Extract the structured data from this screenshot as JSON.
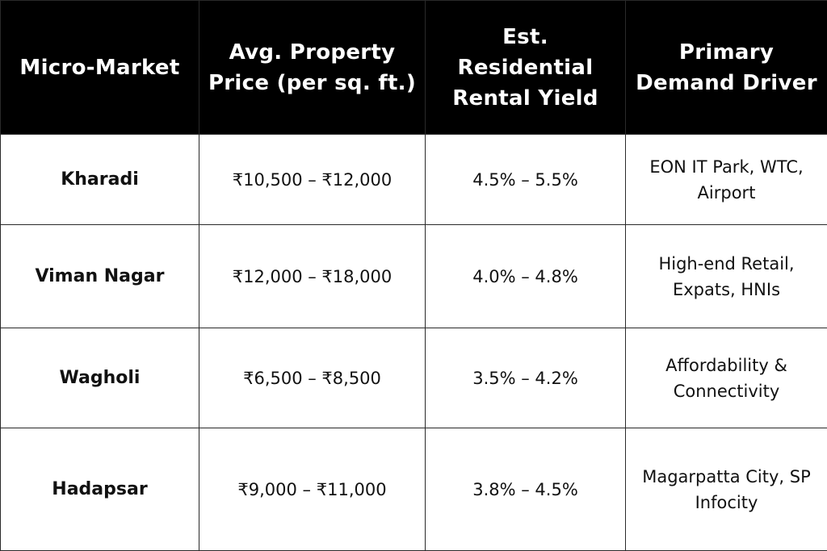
{
  "table": {
    "headers": [
      "Micro-Market",
      "Avg. Property Price (per sq. ft.)",
      "Est. Residential Rental Yield",
      "Primary Demand Driver"
    ],
    "rows": [
      {
        "market": "Kharadi",
        "price": "₹10,500 – ₹12,000",
        "yield": "4.5% – 5.5%",
        "driver": "EON IT Park, WTC, Airport"
      },
      {
        "market": "Viman Nagar",
        "price": "₹12,000 – ₹18,000",
        "yield": "4.0% – 4.8%",
        "driver": "High-end Retail, Expats, HNIs"
      },
      {
        "market": "Wagholi",
        "price": "₹6,500 – ₹8,500",
        "yield": "3.5% – 4.2%",
        "driver": "Affordability & Connectivity"
      },
      {
        "market": "Hadapsar",
        "price": "₹9,000 – ₹11,000",
        "yield": "3.8% – 4.5%",
        "driver": "Magarpatta City, SP Infocity"
      }
    ]
  },
  "colors": {
    "header_bg": "#000000",
    "header_text": "#ffffff",
    "body_bg": "#ffffff",
    "border": "#2a2a2a"
  }
}
